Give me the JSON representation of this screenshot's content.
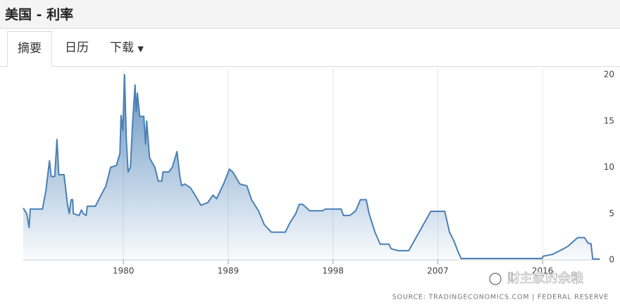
{
  "header": {
    "title": "美国 - 利率"
  },
  "tabs": [
    "摘要",
    "日历",
    "下载"
  ],
  "chart_data": {
    "type": "area",
    "color": "#4a80b6",
    "x": [
      1971.4,
      1971.7,
      1971.9,
      1972.0,
      1973.05,
      1973.35,
      1973.65,
      1973.8,
      1974.1,
      1974.3,
      1974.45,
      1974.9,
      1975.2,
      1975.35,
      1975.5,
      1975.65,
      1975.7,
      1976.2,
      1976.4,
      1976.55,
      1976.8,
      1976.9,
      1977.6,
      1978.0,
      1978.5,
      1978.9,
      1979.4,
      1979.7,
      1979.8,
      1979.95,
      1980.1,
      1980.25,
      1980.4,
      1980.6,
      1980.8,
      1981.0,
      1981.1,
      1981.2,
      1981.4,
      1981.75,
      1981.9,
      1982.0,
      1982.25,
      1982.7,
      1983.0,
      1983.3,
      1983.4,
      1983.9,
      1984.2,
      1984.6,
      1984.85,
      1985.0,
      1985.25,
      1985.75,
      1986.15,
      1986.65,
      1987.25,
      1987.7,
      1988.0,
      1988.6,
      1989.1,
      1989.4,
      1990.0,
      1990.6,
      1991.0,
      1991.6,
      1992.1,
      1992.7,
      1993.9,
      1994.3,
      1994.8,
      1995.1,
      1995.4,
      1996.0,
      1997.1,
      1997.35,
      1998.7,
      1998.9,
      1999.45,
      1999.95,
      2000.35,
      2000.85,
      2001.1,
      2001.6,
      2002.05,
      2002.8,
      2003.0,
      2003.6,
      2004.5,
      2006.4,
      2007.6,
      2008.0,
      2008.4,
      2008.7,
      2009.0,
      2015.95,
      2016.05,
      2016.85,
      2017.8,
      2018.2,
      2019.0,
      2019.6,
      2019.9,
      2020.15,
      2020.3,
      2020.9
    ],
    "values": [
      5.6,
      5.0,
      3.5,
      5.5,
      5.5,
      7.5,
      10.7,
      9,
      9,
      13,
      9.2,
      9.2,
      6,
      5,
      6.5,
      6.5,
      5,
      4.8,
      5.4,
      5,
      4.8,
      5.8,
      5.8,
      6.8,
      8,
      10,
      10.2,
      11.5,
      15.6,
      14,
      20,
      13,
      9.5,
      10,
      15,
      18.9,
      16,
      18,
      15.5,
      15.5,
      12.5,
      15,
      11,
      10,
      8.5,
      8.5,
      9.5,
      9.5,
      10,
      11.7,
      9,
      8,
      8.2,
      7.8,
      7,
      5.9,
      6.2,
      7,
      6.6,
      8.2,
      9.8,
      9.5,
      8.2,
      8,
      6.5,
      5.3,
      3.8,
      3,
      3,
      4,
      5,
      6,
      6,
      5.3,
      5.3,
      5.5,
      5.5,
      4.8,
      4.8,
      5.3,
      6.5,
      6.5,
      5,
      3,
      1.7,
      1.7,
      1.2,
      1,
      1,
      5.25,
      5.25,
      3,
      2,
      1,
      0.15,
      0.15,
      0.4,
      0.6,
      1.2,
      1.5,
      2.4,
      2.4,
      1.8,
      1.75,
      0.1,
      0.1
    ],
    "xlim": [
      1971.4,
      2020.95
    ],
    "xticks": [
      1980,
      1989,
      1998,
      2007,
      2016
    ],
    "ylim": [
      0,
      20
    ],
    "yticks": [
      0,
      5,
      10,
      15,
      20
    ],
    "grid": true,
    "source": "SOURCE: TRADINGECONOMICS.COM | FEDERAL RESERVE",
    "watermark": "财主家的余粮"
  }
}
